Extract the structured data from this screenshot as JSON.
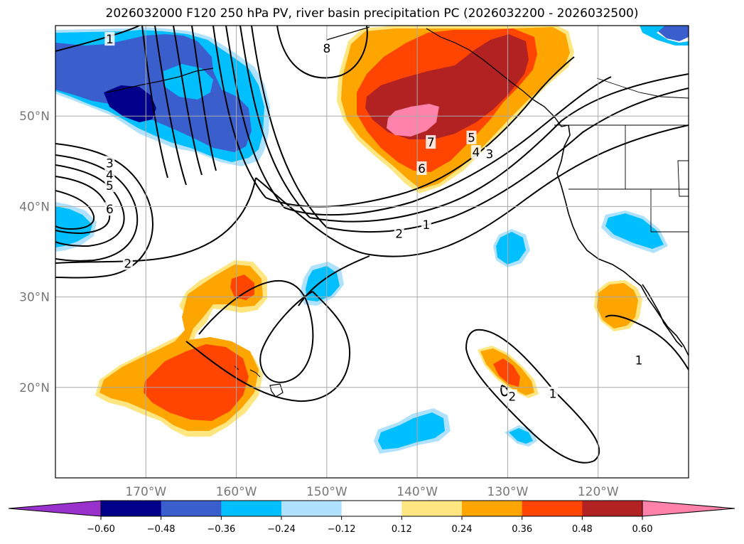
{
  "title": "2026032000 F120 250 hPa PV, river basin precipitation PC (2026032200 - 2026032500)",
  "chart_data": {
    "type": "filled contour map",
    "title": "2026032000 F120 250 hPa PV, river basin precipitation PC (2026032200 - 2026032500)",
    "region": {
      "lon_range": [
        -180,
        -110
      ],
      "lat_range": [
        10,
        60
      ]
    },
    "lat_ticks": [
      {
        "value": 20,
        "label": "20°N"
      },
      {
        "value": 30,
        "label": "30°N"
      },
      {
        "value": 40,
        "label": "40°N"
      },
      {
        "value": 50,
        "label": "50°N"
      }
    ],
    "lon_ticks": [
      {
        "value": -170,
        "label": "170°W"
      },
      {
        "value": -160,
        "label": "160°W"
      },
      {
        "value": -150,
        "label": "150°W"
      },
      {
        "value": -140,
        "label": "140°W"
      },
      {
        "value": -130,
        "label": "130°W"
      },
      {
        "value": -120,
        "label": "120°W"
      }
    ],
    "grid": true,
    "colorbar": {
      "orientation": "horizontal",
      "extend": "both",
      "levels": [
        -0.6,
        -0.48,
        -0.36,
        -0.24,
        -0.12,
        0.12,
        0.24,
        0.36,
        0.48,
        0.6
      ],
      "tick_labels": [
        "−0.60",
        "−0.48",
        "−0.36",
        "−0.24",
        "−0.12",
        "0.12",
        "0.24",
        "0.36",
        "0.48",
        "0.60"
      ],
      "colors": [
        "#9932cc",
        "#00008b",
        "#3a5fcd",
        "#00bfff",
        "#b0e2ff",
        "#ffffff",
        "#ffe680",
        "#ffa500",
        "#ff4500",
        "#b22222",
        "#ff82ab"
      ]
    },
    "contour_field": "250 hPa PV",
    "contour_levels_labeled": [
      "1",
      "2",
      "3",
      "4",
      "5",
      "6",
      "7",
      "8"
    ],
    "contour_labels": [
      {
        "text": "1",
        "lon": -174,
        "lat": 58.5
      },
      {
        "text": "8",
        "lon": -150,
        "lat": 57.5
      },
      {
        "text": "3",
        "lon": -174,
        "lat": 44.8
      },
      {
        "text": "4",
        "lon": -174,
        "lat": 43.5
      },
      {
        "text": "5",
        "lon": -174,
        "lat": 42.3
      },
      {
        "text": "6",
        "lon": -174,
        "lat": 39.7
      },
      {
        "text": "2",
        "lon": -172,
        "lat": 33.7
      },
      {
        "text": "7",
        "lon": -138.5,
        "lat": 47.1
      },
      {
        "text": "6",
        "lon": -139.5,
        "lat": 44.2
      },
      {
        "text": "5",
        "lon": -134,
        "lat": 47.6
      },
      {
        "text": "4",
        "lon": -133.5,
        "lat": 46.0
      },
      {
        "text": "3",
        "lon": -132,
        "lat": 45.8
      },
      {
        "text": "2",
        "lon": -142,
        "lat": 37.0
      },
      {
        "text": "1",
        "lon": -139,
        "lat": 38.0
      },
      {
        "text": "1",
        "lon": -125,
        "lat": 19.3
      },
      {
        "text": "2",
        "lon": -129.5,
        "lat": 19.0
      },
      {
        "text": "1",
        "lon": -115.5,
        "lat": 23.0
      }
    ],
    "anomalies": [
      {
        "sign": "negative",
        "max_level": -0.6,
        "region": "Gulf of Alaska / Aleutians",
        "center": [
          -168,
          52
        ]
      },
      {
        "sign": "negative",
        "max_level": -0.24,
        "region": "west edge",
        "center": [
          -178,
          38
        ]
      },
      {
        "sign": "negative",
        "max_level": -0.24,
        "region": "central Pacific",
        "center": [
          -148,
          31
        ]
      },
      {
        "sign": "negative",
        "max_level": -0.24,
        "region": "east Pacific",
        "center": [
          -130,
          35
        ]
      },
      {
        "sign": "negative",
        "max_level": -0.24,
        "region": "Nevada / Utah",
        "center": [
          -116,
          37
        ]
      },
      {
        "sign": "negative",
        "max_level": -0.24,
        "region": "south-central Pacific",
        "center": [
          -141,
          14.5
        ]
      },
      {
        "sign": "negative",
        "max_level": -0.24,
        "region": "south-east Pacific",
        "center": [
          -129,
          13.5
        ]
      },
      {
        "sign": "positive",
        "max_level": 0.6,
        "region": "NE Pacific / British Columbia",
        "center": [
          -139,
          49
        ]
      },
      {
        "sign": "positive",
        "max_level": 0.48,
        "region": "north of Hawaii",
        "center": [
          -160,
          31
        ]
      },
      {
        "sign": "positive",
        "max_level": 0.36,
        "region": "near Hawaii",
        "center": [
          -165,
          20
        ]
      },
      {
        "sign": "positive",
        "max_level": 0.36,
        "region": "east Pacific",
        "center": [
          -130,
          21
        ]
      },
      {
        "sign": "positive",
        "max_level": 0.24,
        "region": "Baja California",
        "center": [
          -118,
          29.5
        ]
      }
    ]
  }
}
